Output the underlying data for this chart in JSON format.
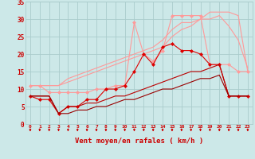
{
  "x": [
    0,
    1,
    2,
    3,
    4,
    5,
    6,
    7,
    8,
    9,
    10,
    11,
    12,
    13,
    14,
    15,
    16,
    17,
    18,
    19,
    20,
    21,
    22,
    23
  ],
  "series": [
    {
      "name": "line1_upper_pink_no_marker",
      "color": "#ff9999",
      "linewidth": 0.8,
      "marker": null,
      "y": [
        11,
        11,
        11,
        11,
        13,
        14,
        15,
        16,
        17,
        18,
        19,
        20,
        21,
        22,
        24,
        27,
        29,
        29,
        30,
        30,
        31,
        28,
        24,
        16
      ]
    },
    {
      "name": "line2_upper_pink_no_marker",
      "color": "#ff9999",
      "linewidth": 0.8,
      "marker": null,
      "y": [
        11,
        11,
        11,
        11,
        12,
        13,
        14,
        15,
        16,
        17,
        18,
        19,
        20,
        21,
        22,
        25,
        27,
        28,
        30,
        32,
        32,
        32,
        31,
        15
      ]
    },
    {
      "name": "line3_pink_marker",
      "color": "#ff9999",
      "linewidth": 0.8,
      "marker": "D",
      "markersize": 2,
      "y": [
        11,
        11,
        9,
        9,
        9,
        9,
        9,
        10,
        10,
        11,
        11,
        29,
        20,
        18,
        21,
        31,
        31,
        31,
        31,
        17,
        17,
        17,
        15,
        15
      ]
    },
    {
      "name": "line4_red_marker",
      "color": "#dd0000",
      "linewidth": 0.8,
      "marker": "D",
      "markersize": 2,
      "y": [
        8,
        7,
        7,
        3,
        5,
        5,
        7,
        7,
        10,
        10,
        11,
        15,
        20,
        17,
        22,
        23,
        21,
        21,
        20,
        17,
        17,
        8,
        8,
        8
      ]
    },
    {
      "name": "line5_dark_red",
      "color": "#bb0000",
      "linewidth": 0.8,
      "marker": null,
      "y": [
        8,
        8,
        8,
        3,
        5,
        5,
        6,
        6,
        7,
        8,
        8,
        9,
        10,
        11,
        12,
        13,
        14,
        15,
        15,
        16,
        17,
        8,
        8,
        8
      ]
    },
    {
      "name": "line6_darkest_red",
      "color": "#990000",
      "linewidth": 0.8,
      "marker": null,
      "y": [
        8,
        8,
        8,
        3,
        3,
        4,
        4,
        5,
        5,
        6,
        7,
        7,
        8,
        9,
        10,
        10,
        11,
        12,
        13,
        13,
        14,
        8,
        8,
        8
      ]
    }
  ],
  "xlabel": "Vent moyen/en rafales ( km/h )",
  "xlim": [
    -0.5,
    23.5
  ],
  "ylim": [
    0,
    35
  ],
  "xticks": [
    0,
    1,
    2,
    3,
    4,
    5,
    6,
    7,
    8,
    9,
    10,
    11,
    12,
    13,
    14,
    15,
    16,
    17,
    18,
    19,
    20,
    21,
    22,
    23
  ],
  "yticks": [
    0,
    5,
    10,
    15,
    20,
    25,
    30,
    35
  ],
  "bg_color": "#cce8e8",
  "grid_color": "#aacccc",
  "tick_color": "#cc0000",
  "label_color": "#cc0000",
  "arrow_color": "#cc0000"
}
